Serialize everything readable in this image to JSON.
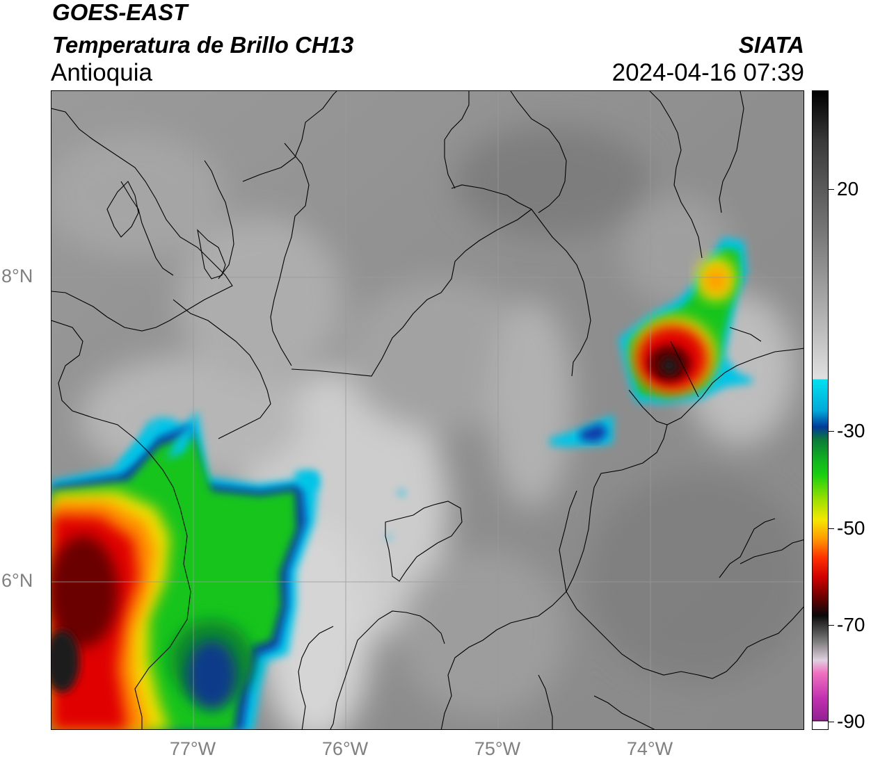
{
  "header": {
    "satellite": "GOES-EAST",
    "product": "Temperatura de Brillo CH13",
    "region": "Antioquia",
    "organization": "SIATA",
    "datetime": "2024-04-16 07:39"
  },
  "map": {
    "lon_range": [
      -77.93,
      -73.1
    ],
    "lat_range": [
      5.05,
      9.25
    ],
    "lat_ticks": [
      {
        "value": 8,
        "label": "8°N"
      },
      {
        "value": 6,
        "label": "6°N"
      }
    ],
    "lon_ticks": [
      {
        "value": -77,
        "label": "77°W"
      },
      {
        "value": -76,
        "label": "76°W"
      },
      {
        "value": -75,
        "label": "75°W"
      },
      {
        "value": -74,
        "label": "74°W"
      }
    ],
    "colors": {
      "background_gray": "#8a8a8a",
      "cold_cloud_cyan": "#00c8e6",
      "cold_cloud_green": "#10c810",
      "cold_cloud_yellow": "#f0e000",
      "cold_cloud_red": "#e00000",
      "cold_cloud_darkred": "#500000"
    }
  },
  "colorbar": {
    "range": [
      -90,
      40
    ],
    "ticks": [
      {
        "value": 20,
        "label": "20"
      },
      {
        "value": -30,
        "label": "-30"
      },
      {
        "value": -50,
        "label": "-50"
      },
      {
        "value": -70,
        "label": "-70"
      },
      {
        "value": -90,
        "label": "-90"
      }
    ]
  }
}
